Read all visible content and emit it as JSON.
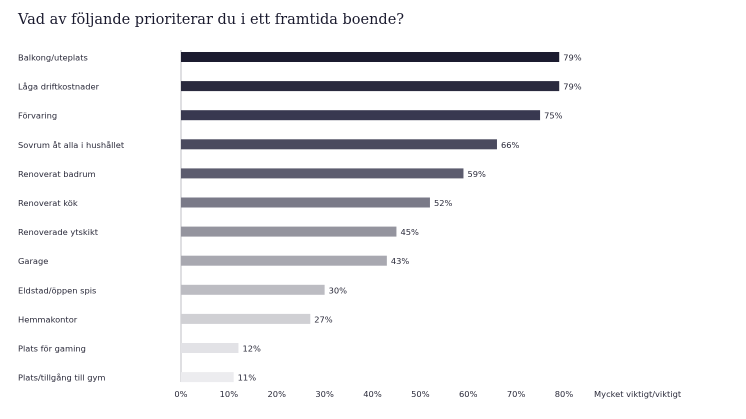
{
  "chart_data": {
    "type": "bar",
    "orientation": "horizontal",
    "title": "Vad av följande prioriterar du i ett framtida boende?",
    "categories": [
      "Balkong/uteplats",
      "Låga driftkostnader",
      "Förvaring",
      "Sovrum åt alla i hushållet",
      "Renoverat badrum",
      "Renoverat kök",
      "Renoverade ytskikt",
      "Garage",
      "Eldstad/öppen spis",
      "Hemmakontor",
      "Plats för gaming",
      "Plats/tillgång till gym"
    ],
    "values": [
      79,
      79,
      75,
      66,
      59,
      52,
      45,
      43,
      30,
      27,
      12,
      11
    ],
    "value_labels": [
      "79%",
      "79%",
      "75%",
      "66%",
      "59%",
      "52%",
      "45%",
      "43%",
      "30%",
      "27%",
      "12%",
      "11%"
    ],
    "xlabel": "Mycket viktigt/viktigt",
    "xlim": [
      0,
      80
    ],
    "xticks": [
      "0%",
      "10%",
      "20%",
      "30%",
      "40%",
      "50%",
      "60%",
      "70%",
      "80%"
    ],
    "bar_colors": [
      "#1b1b2f",
      "#2a2a3e",
      "#383850",
      "#4a4a5e",
      "#5c5c6e",
      "#7a7a88",
      "#94949e",
      "#a8a8b0",
      "#bcbcc2",
      "#d0d0d4",
      "#e2e2e6",
      "#ececef"
    ],
    "grid": false,
    "legend": "none"
  }
}
